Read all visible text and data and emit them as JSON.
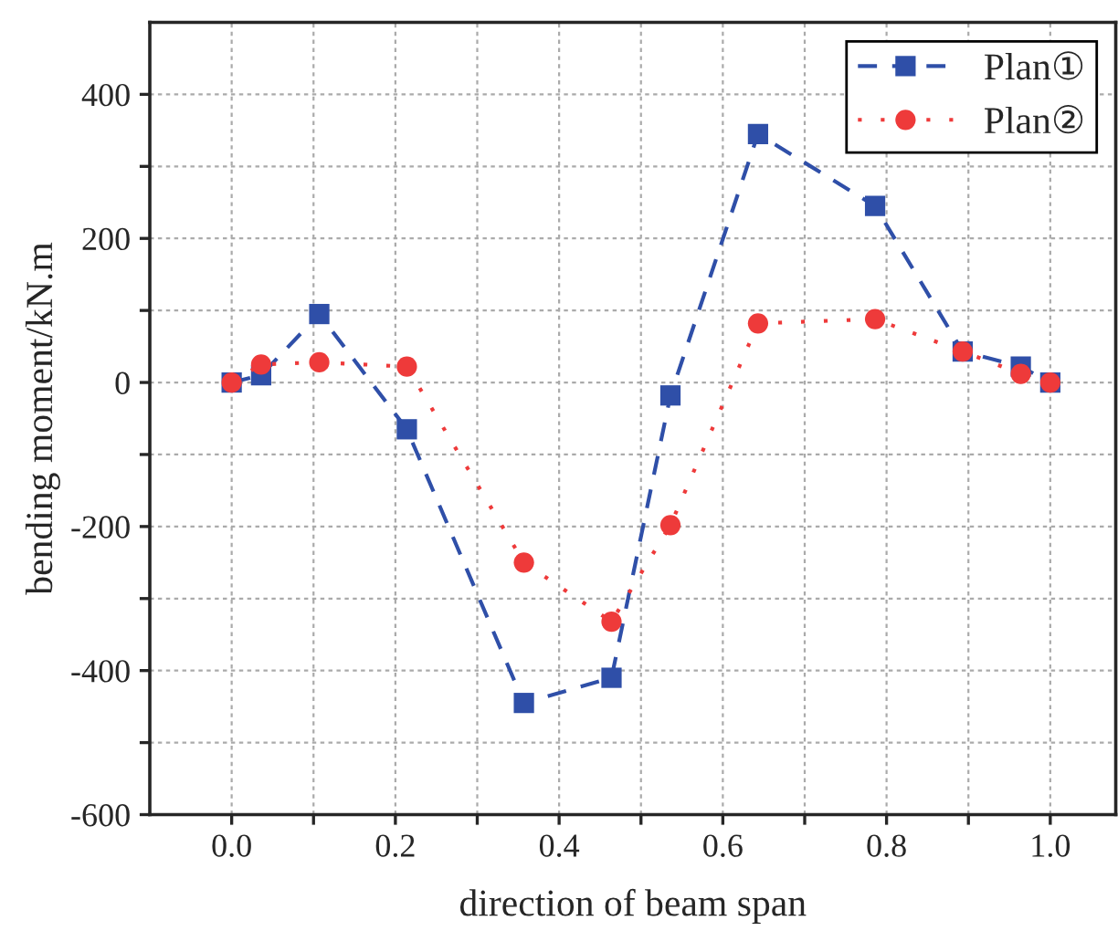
{
  "chart_data": {
    "type": "line",
    "xlabel": "direction of beam span",
    "ylabel": "bending moment/kN.m",
    "x": [
      0,
      0.036,
      0.107,
      0.214,
      0.357,
      0.464,
      0.536,
      0.643,
      0.786,
      0.893,
      0.964,
      1.0
    ],
    "series": [
      {
        "name": "Plan①",
        "color": "#2f4fa8",
        "marker": "square",
        "line_style": "dashed",
        "values": [
          0,
          10,
          95,
          -65,
          -445,
          -410,
          -18,
          345,
          245,
          43,
          22,
          0
        ]
      },
      {
        "name": "Plan②",
        "color": "#ee3a3a",
        "marker": "circle",
        "line_style": "dotted",
        "values": [
          0,
          25,
          28,
          22,
          -250,
          -332,
          -198,
          82,
          88,
          43,
          12,
          0
        ]
      }
    ],
    "xlim": [
      -0.1,
      1.08
    ],
    "xticks": [
      {
        "value": 0,
        "label": "0.0"
      },
      {
        "value": 0.1,
        "label": null
      },
      {
        "value": 0.2,
        "label": "0.2"
      },
      {
        "value": 0.3,
        "label": null
      },
      {
        "value": 0.4,
        "label": "0.4"
      },
      {
        "value": 0.5,
        "label": null
      },
      {
        "value": 0.6,
        "label": "0.6"
      },
      {
        "value": 0.7,
        "label": null
      },
      {
        "value": 0.8,
        "label": "0.8"
      },
      {
        "value": 0.9,
        "label": null
      },
      {
        "value": 1.0,
        "label": "1.0"
      }
    ],
    "ylim": [
      -600,
      500
    ],
    "yticks": [
      -600,
      {
        "value": -500,
        "label": null
      },
      -400,
      {
        "value": -300,
        "label": null
      },
      -200,
      {
        "value": -100,
        "label": null
      },
      0,
      {
        "value": 100,
        "label": null
      },
      200,
      {
        "value": 300,
        "label": null
      },
      400
    ],
    "grid": true,
    "legend": "top right"
  }
}
